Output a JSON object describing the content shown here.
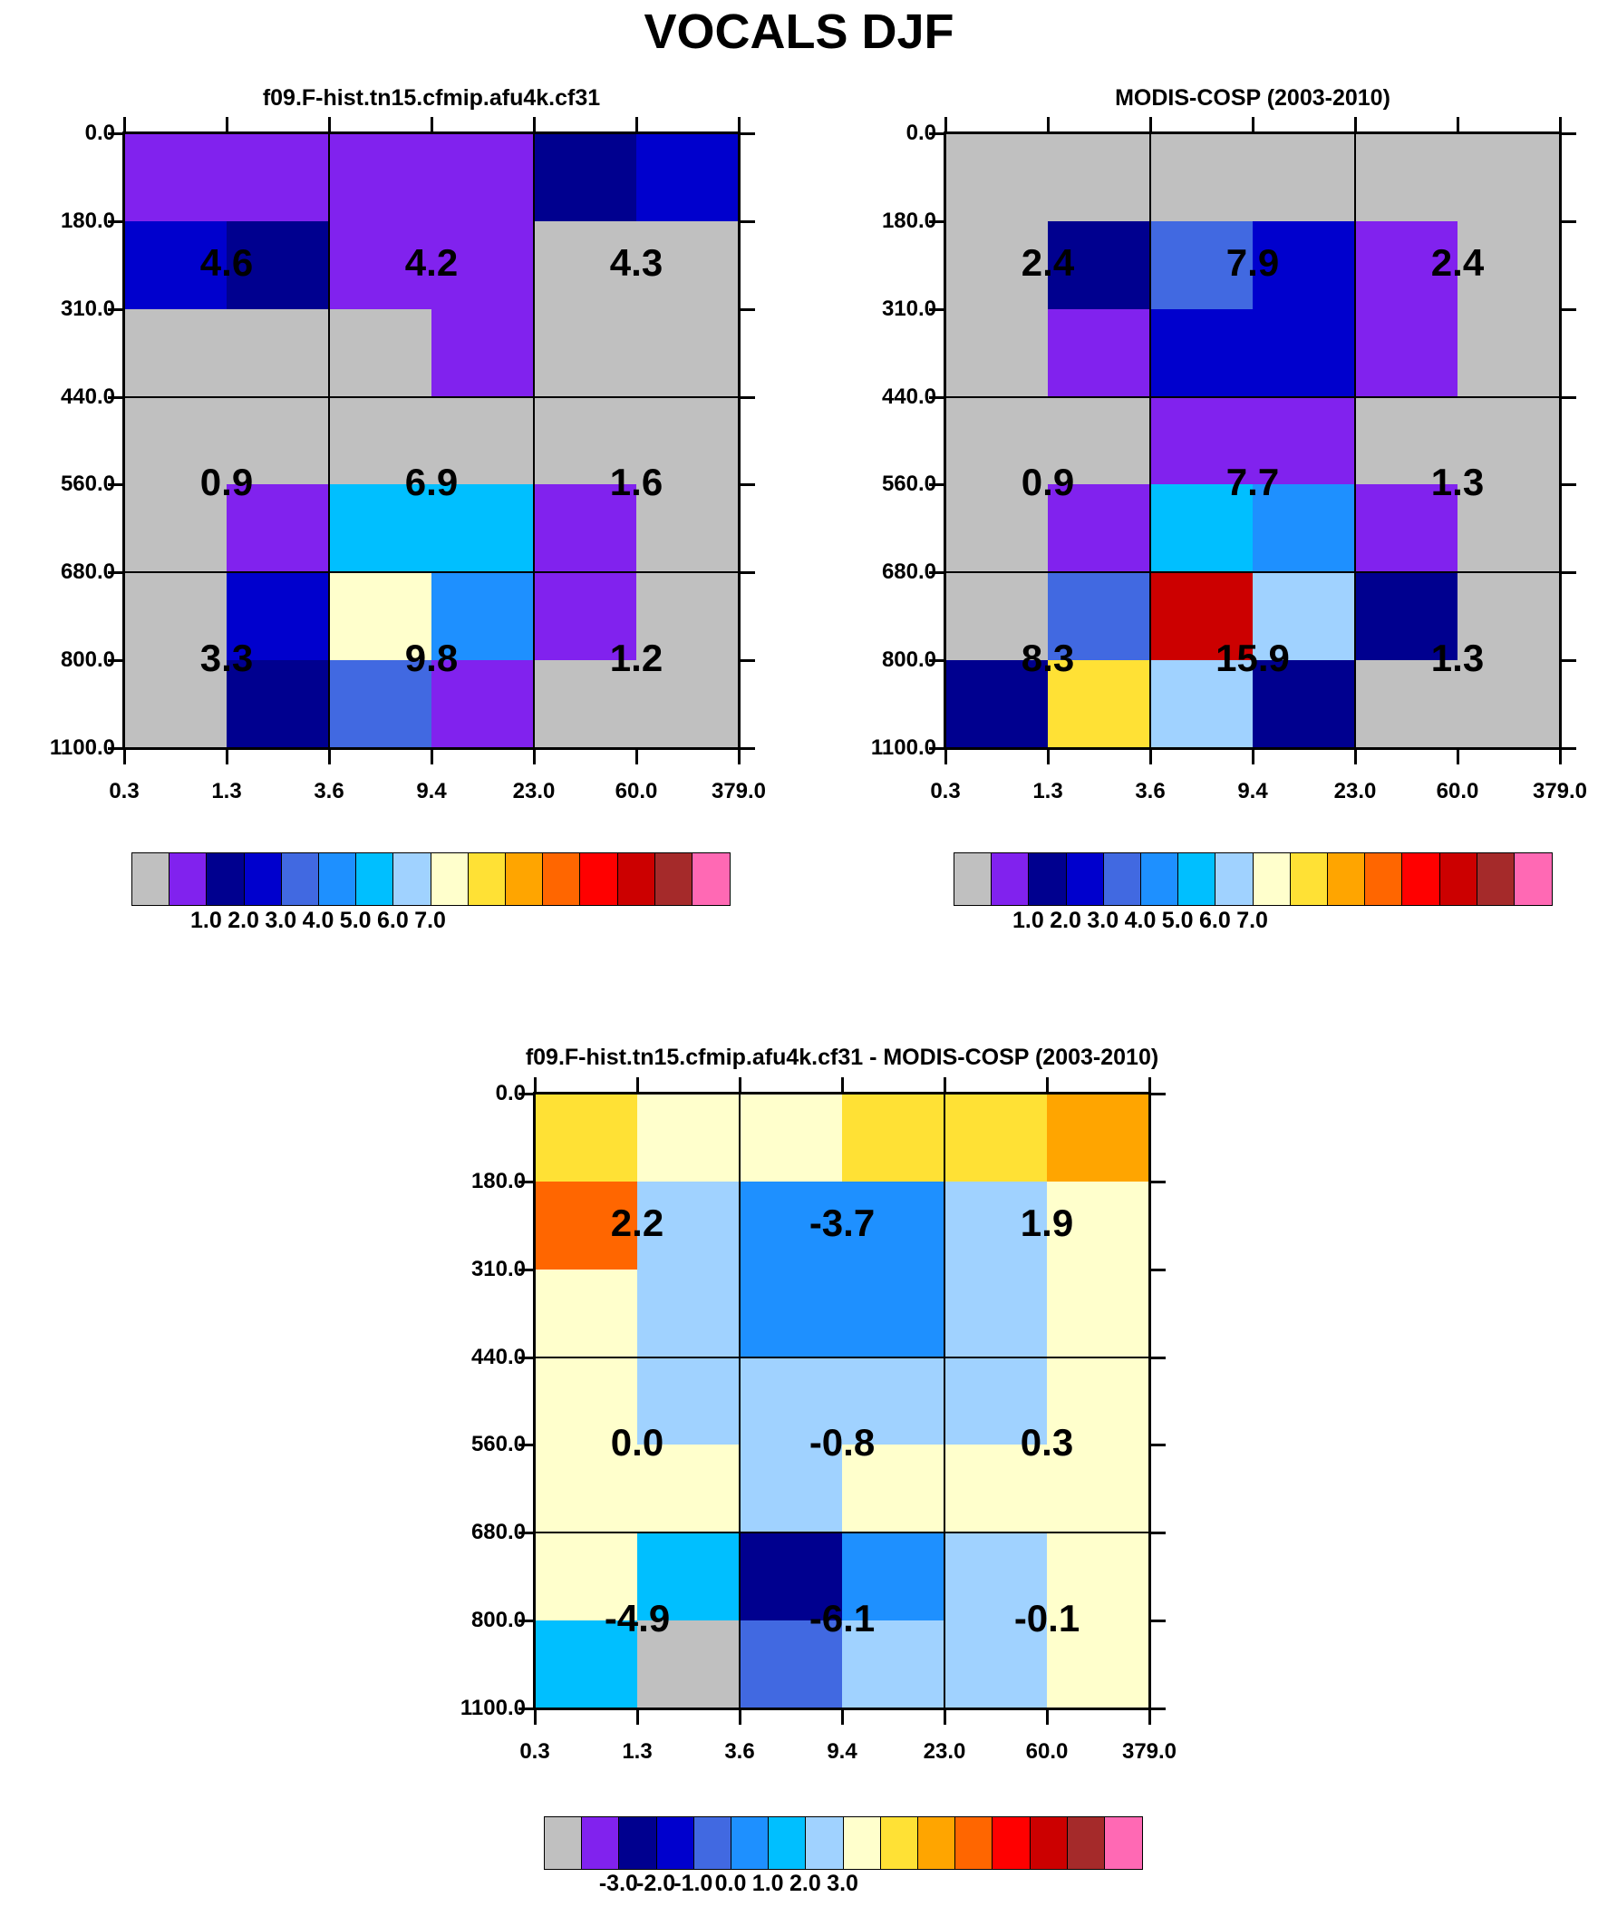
{
  "title": "VOCALS DJF",
  "chart_data": [
    {
      "type": "heatmap",
      "title": "f09.F-hist.tn15.cfmip.afu4k.cf31",
      "x_ticks": [
        "0.3",
        "1.3",
        "3.6",
        "9.4",
        "23.0",
        "60.0",
        "379.0"
      ],
      "y_ticks": [
        "0.0",
        "180.0",
        "310.0",
        "440.0",
        "560.0",
        "680.0",
        "800.0",
        "1100.0"
      ],
      "cell_colors": [
        [
          "purple",
          "purple",
          "purple",
          "purple",
          "navy",
          "blue"
        ],
        [
          "blue",
          "navy",
          "purple",
          "purple",
          "gray",
          "gray"
        ],
        [
          "gray",
          "gray",
          "gray",
          "purple",
          "gray",
          "gray"
        ],
        [
          "gray",
          "gray",
          "gray",
          "gray",
          "gray",
          "gray"
        ],
        [
          "gray",
          "purple",
          "deepskyblue",
          "deepskyblue",
          "purple",
          "gray"
        ],
        [
          "gray",
          "blue",
          "lightyellow",
          "dodgerblue",
          "purple",
          "gray"
        ],
        [
          "gray",
          "navy",
          "royalblue",
          "purple",
          "gray",
          "gray"
        ]
      ],
      "region_labels": [
        [
          "4.6",
          "4.2",
          "4.3"
        ],
        [
          "0.9",
          "6.9",
          "1.6"
        ],
        [
          "3.3",
          "9.8",
          "1.2"
        ]
      ],
      "legend_labels": [
        "1.0",
        "2.0",
        "3.0",
        "4.0",
        "5.0",
        "6.0",
        "7.0"
      ]
    },
    {
      "type": "heatmap",
      "title": "MODIS-COSP (2003-2010)",
      "x_ticks": [
        "0.3",
        "1.3",
        "3.6",
        "9.4",
        "23.0",
        "60.0",
        "379.0"
      ],
      "y_ticks": [
        "0.0",
        "180.0",
        "310.0",
        "440.0",
        "560.0",
        "680.0",
        "800.0",
        "1100.0"
      ],
      "cell_colors": [
        [
          "gray",
          "gray",
          "gray",
          "gray",
          "gray",
          "gray"
        ],
        [
          "gray",
          "navy",
          "royalblue",
          "blue",
          "purple",
          "gray"
        ],
        [
          "gray",
          "purple",
          "blue",
          "blue",
          "purple",
          "gray"
        ],
        [
          "gray",
          "gray",
          "purple",
          "purple",
          "gray",
          "gray"
        ],
        [
          "gray",
          "purple",
          "deepskyblue",
          "dodgerblue",
          "purple",
          "gray"
        ],
        [
          "gray",
          "royalblue",
          "red3",
          "lightblue",
          "navy",
          "gray"
        ],
        [
          "navy",
          "gold",
          "lightblue",
          "navy",
          "gray",
          "gray"
        ]
      ],
      "region_labels": [
        [
          "2.4",
          "7.9",
          "2.4"
        ],
        [
          "0.9",
          "7.7",
          "1.3"
        ],
        [
          "8.3",
          "15.9",
          "1.3"
        ]
      ],
      "legend_labels": [
        "1.0",
        "2.0",
        "3.0",
        "4.0",
        "5.0",
        "6.0",
        "7.0"
      ]
    },
    {
      "type": "heatmap",
      "title": "f09.F-hist.tn15.cfmip.afu4k.cf31 - MODIS-COSP (2003-2010)",
      "x_ticks": [
        "0.3",
        "1.3",
        "3.6",
        "9.4",
        "23.0",
        "60.0",
        "379.0"
      ],
      "y_ticks": [
        "0.0",
        "180.0",
        "310.0",
        "440.0",
        "560.0",
        "680.0",
        "800.0",
        "1100.0"
      ],
      "cell_colors": [
        [
          "gold",
          "lightyellow",
          "lightyellow",
          "gold",
          "gold",
          "orange"
        ],
        [
          "darkorange",
          "lightblue",
          "dodgerblue",
          "dodgerblue",
          "lightblue",
          "lightyellow"
        ],
        [
          "lightyellow",
          "lightblue",
          "dodgerblue",
          "dodgerblue",
          "lightblue",
          "lightyellow"
        ],
        [
          "lightyellow",
          "lightblue",
          "lightblue",
          "lightblue",
          "lightblue",
          "lightyellow"
        ],
        [
          "lightyellow",
          "lightyellow",
          "lightblue",
          "lightyellow",
          "lightyellow",
          "lightyellow"
        ],
        [
          "lightyellow",
          "deepskyblue",
          "navy",
          "dodgerblue",
          "lightblue",
          "lightyellow"
        ],
        [
          "deepskyblue",
          "gray",
          "royalblue",
          "lightblue",
          "lightblue",
          "lightyellow"
        ]
      ],
      "region_labels": [
        [
          "2.2",
          "-3.7",
          "1.9"
        ],
        [
          "0.0",
          "-0.8",
          "0.3"
        ],
        [
          "-4.9",
          "-6.1",
          "-0.1"
        ]
      ],
      "legend_labels": [
        "-3.0",
        "-2.0",
        "-1.0",
        "0.0",
        "1.0",
        "2.0",
        "3.0"
      ]
    }
  ],
  "palette": {
    "gray": "#C0C0C0",
    "purple": "#8122EE",
    "navy": "#00008F",
    "blue": "#0000CD",
    "royalblue": "#4169E1",
    "dodgerblue": "#1E90FF",
    "deepskyblue": "#00BFFF",
    "lightblue": "#A0D2FF",
    "lightyellow": "#FFFFCC",
    "gold": "#FFE135",
    "orange": "#FFA500",
    "darkorange": "#FF6600",
    "red": "#FF0000",
    "red3": "#CC0000",
    "brown": "#A52A2A",
    "pink": "#FF69B4"
  },
  "legend_colors": [
    "gray",
    "purple",
    "navy",
    "blue",
    "royalblue",
    "dodgerblue",
    "deepskyblue",
    "lightblue",
    "lightyellow",
    "gold",
    "orange",
    "darkorange",
    "red",
    "red3",
    "brown",
    "pink"
  ]
}
